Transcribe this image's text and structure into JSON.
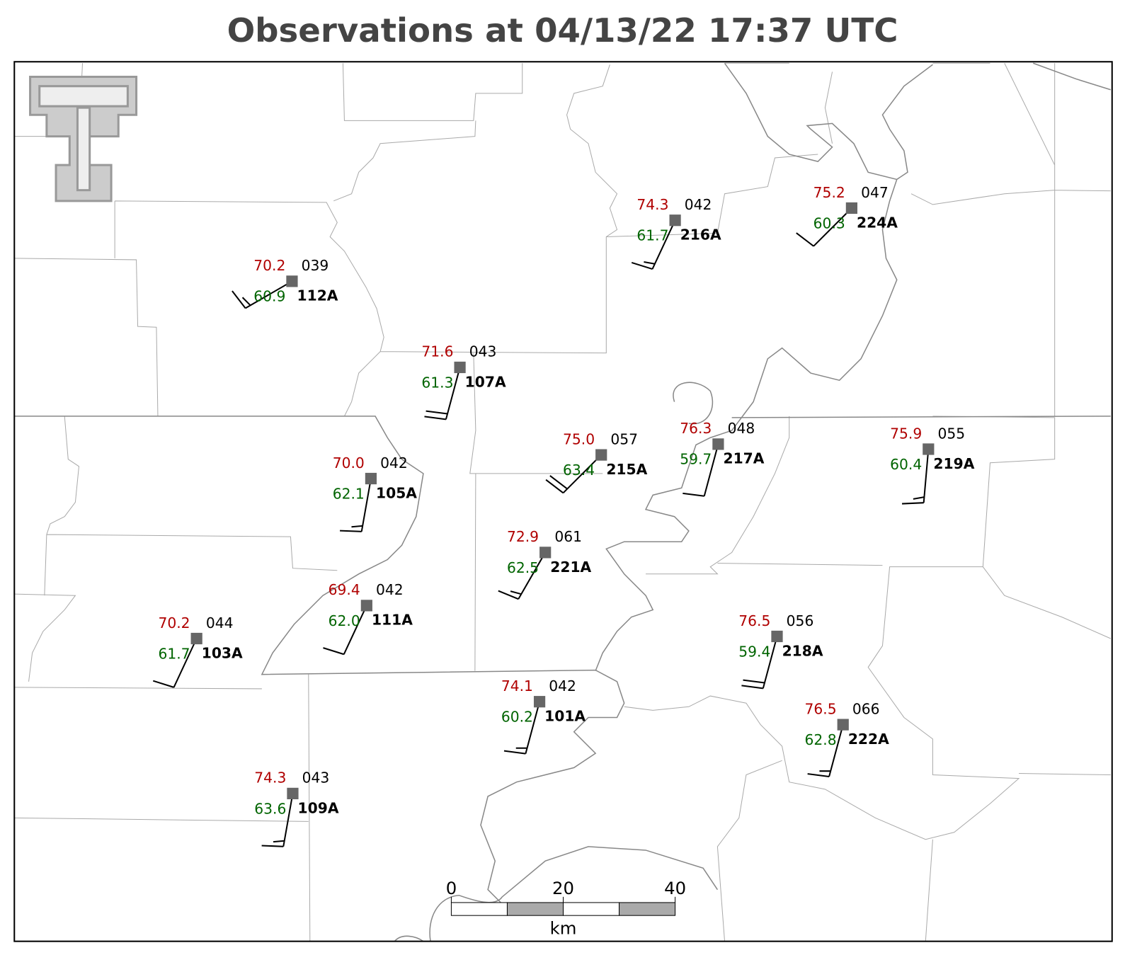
{
  "title": "Observations at 04/13/22 17:37 UTC",
  "stations": [
    {
      "id": "112A",
      "temperature": "70.2",
      "dewpoint": "60.9",
      "pressure": "039",
      "wind_dir": 240,
      "wind_speed": 15
    },
    {
      "id": "107A",
      "temperature": "71.6",
      "dewpoint": "61.3",
      "pressure": "043",
      "wind_dir": 195,
      "wind_speed": 20
    },
    {
      "id": "216A",
      "temperature": "74.3",
      "dewpoint": "61.7",
      "pressure": "042",
      "wind_dir": 205,
      "wind_speed": 15
    },
    {
      "id": "224A",
      "temperature": "75.2",
      "dewpoint": "60.3",
      "pressure": "047",
      "wind_dir": 225,
      "wind_speed": 10
    },
    {
      "id": "105A",
      "temperature": "70.0",
      "dewpoint": "62.1",
      "pressure": "042",
      "wind_dir": 190,
      "wind_speed": 15
    },
    {
      "id": "215A",
      "temperature": "75.0",
      "dewpoint": "63.4",
      "pressure": "057",
      "wind_dir": 225,
      "wind_speed": 20
    },
    {
      "id": "217A",
      "temperature": "76.3",
      "dewpoint": "59.7",
      "pressure": "048",
      "wind_dir": 195,
      "wind_speed": 10
    },
    {
      "id": "219A",
      "temperature": "75.9",
      "dewpoint": "60.4",
      "pressure": "055",
      "wind_dir": 185,
      "wind_speed": 15
    },
    {
      "id": "221A",
      "temperature": "72.9",
      "dewpoint": "62.5",
      "pressure": "061",
      "wind_dir": 210,
      "wind_speed": 15
    },
    {
      "id": "111A",
      "temperature": "69.4",
      "dewpoint": "62.0",
      "pressure": "042",
      "wind_dir": 205,
      "wind_speed": 10
    },
    {
      "id": "103A",
      "temperature": "70.2",
      "dewpoint": "61.7",
      "pressure": "044",
      "wind_dir": 205,
      "wind_speed": 10
    },
    {
      "id": "218A",
      "temperature": "76.5",
      "dewpoint": "59.4",
      "pressure": "056",
      "wind_dir": 195,
      "wind_speed": 20
    },
    {
      "id": "101A",
      "temperature": "74.1",
      "dewpoint": "60.2",
      "pressure": "042",
      "wind_dir": 195,
      "wind_speed": 15
    },
    {
      "id": "222A",
      "temperature": "76.5",
      "dewpoint": "62.8",
      "pressure": "066",
      "wind_dir": 195,
      "wind_speed": 15
    },
    {
      "id": "109A",
      "temperature": "74.3",
      "dewpoint": "63.6",
      "pressure": "043",
      "wind_dir": 190,
      "wind_speed": 15
    }
  ],
  "scale_bar": {
    "ticks": [
      0,
      20,
      40
    ],
    "unit": "km"
  }
}
